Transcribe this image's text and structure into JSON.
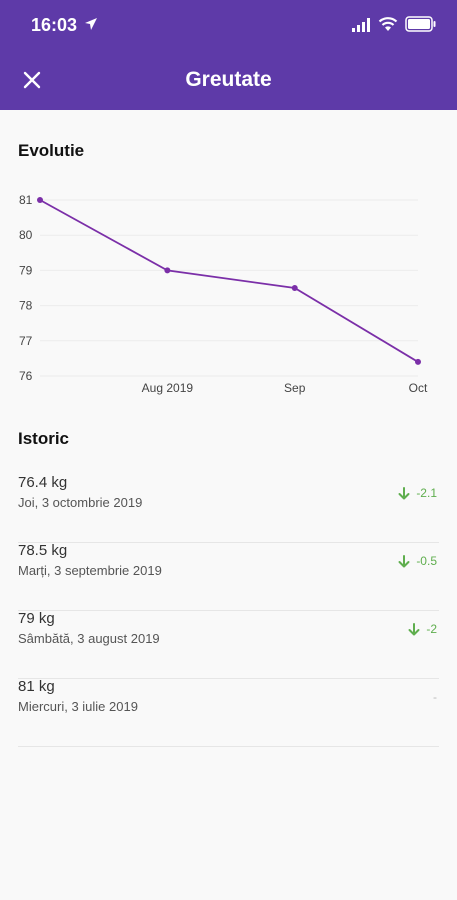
{
  "status_bar": {
    "time": "16:03"
  },
  "header": {
    "title": "Greutate"
  },
  "sections": {
    "evolution_title": "Evolutie",
    "history_title": "Istoric"
  },
  "chart_data": {
    "type": "line",
    "x": [
      "2019-07-03",
      "2019-08-03",
      "2019-09-03",
      "2019-10-03"
    ],
    "series": [
      {
        "values": [
          81,
          79,
          78.5,
          76.4
        ]
      }
    ],
    "x_tick_labels": [
      "Aug 2019",
      "Sep",
      "Oct"
    ],
    "y_tick_labels": [
      "81",
      "80",
      "79",
      "78",
      "77",
      "76"
    ],
    "ylim": [
      76,
      81
    ],
    "grid": true,
    "line_color": "#7b2fa8"
  },
  "history": [
    {
      "weight": "76.4 kg",
      "date": "Joi, 3 octombrie 2019",
      "delta": "-2.1"
    },
    {
      "weight": "78.5 kg",
      "date": "Marți, 3 septembrie 2019",
      "delta": "-0.5"
    },
    {
      "weight": "79 kg",
      "date": "Sâmbătă, 3 august 2019",
      "delta": "-2"
    },
    {
      "weight": "81 kg",
      "date": "Miercuri, 3 iulie 2019",
      "delta": "-"
    }
  ],
  "colors": {
    "header": "#5e3aa8",
    "decrease": "#5fae4e"
  }
}
